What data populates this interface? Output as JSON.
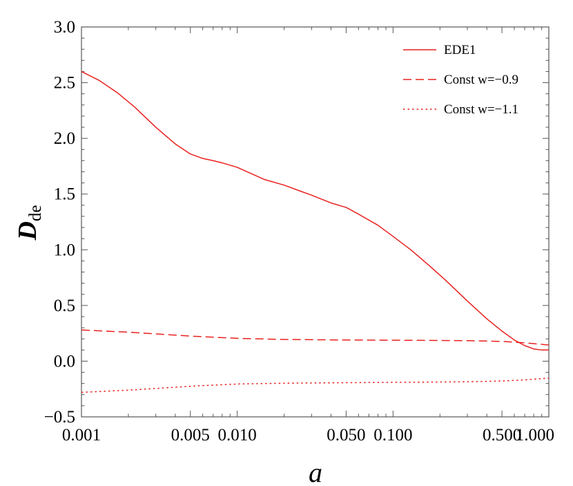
{
  "chart_data": {
    "type": "line",
    "xscale": "log",
    "xlim": [
      0.001,
      1.0
    ],
    "ylim": [
      -0.5,
      3.0
    ],
    "xlabel": "a",
    "ylabel_main": "D",
    "ylabel_sub": "de",
    "grid": false,
    "legend_position": "top-right",
    "x_ticks": [
      {
        "value": 0.001,
        "label": "0.001"
      },
      {
        "value": 0.005,
        "label": "0.005"
      },
      {
        "value": 0.01,
        "label": "0.010"
      },
      {
        "value": 0.05,
        "label": "0.050"
      },
      {
        "value": 0.1,
        "label": "0.100"
      },
      {
        "value": 0.5,
        "label": "0.500"
      },
      {
        "value": 1.0,
        "label": "1.000"
      }
    ],
    "y_ticks": [
      {
        "value": -0.5,
        "label": "−0.5"
      },
      {
        "value": 0.0,
        "label": "0.0"
      },
      {
        "value": 0.5,
        "label": "0.5"
      },
      {
        "value": 1.0,
        "label": "1.0"
      },
      {
        "value": 1.5,
        "label": "1.5"
      },
      {
        "value": 2.0,
        "label": "2.0"
      },
      {
        "value": 2.5,
        "label": "2.5"
      },
      {
        "value": 3.0,
        "label": "3.0"
      }
    ],
    "series": [
      {
        "name": "EDE1",
        "style": "solid",
        "color": "#e8201e",
        "x": [
          0.001,
          0.0013,
          0.0017,
          0.0022,
          0.003,
          0.004,
          0.005,
          0.006,
          0.007,
          0.008,
          0.01,
          0.012,
          0.015,
          0.02,
          0.025,
          0.03,
          0.04,
          0.05,
          0.06,
          0.08,
          0.1,
          0.13,
          0.17,
          0.22,
          0.3,
          0.4,
          0.5,
          0.6,
          0.7,
          0.8,
          0.9,
          1.0
        ],
        "values": [
          2.6,
          2.52,
          2.41,
          2.28,
          2.1,
          1.95,
          1.86,
          1.82,
          1.8,
          1.78,
          1.74,
          1.69,
          1.63,
          1.58,
          1.53,
          1.49,
          1.42,
          1.38,
          1.32,
          1.22,
          1.12,
          1.0,
          0.86,
          0.72,
          0.54,
          0.38,
          0.27,
          0.19,
          0.14,
          0.11,
          0.1,
          0.1
        ]
      },
      {
        "name": "Const w=−0.9",
        "style": "dashed",
        "color": "#e8201e",
        "x": [
          0.001,
          0.002,
          0.003,
          0.005,
          0.01,
          0.02,
          0.05,
          0.1,
          0.2,
          0.3,
          0.5,
          0.7,
          1.0
        ],
        "values": [
          0.28,
          0.26,
          0.245,
          0.225,
          0.205,
          0.195,
          0.19,
          0.188,
          0.186,
          0.184,
          0.177,
          0.165,
          0.145
        ]
      },
      {
        "name": "Const w=−1.1",
        "style": "dotted",
        "color": "#e8201e",
        "x": [
          0.001,
          0.002,
          0.003,
          0.005,
          0.01,
          0.02,
          0.05,
          0.1,
          0.2,
          0.3,
          0.5,
          0.7,
          1.0
        ],
        "values": [
          -0.28,
          -0.26,
          -0.245,
          -0.225,
          -0.205,
          -0.198,
          -0.193,
          -0.19,
          -0.187,
          -0.185,
          -0.178,
          -0.168,
          -0.152
        ]
      }
    ]
  }
}
